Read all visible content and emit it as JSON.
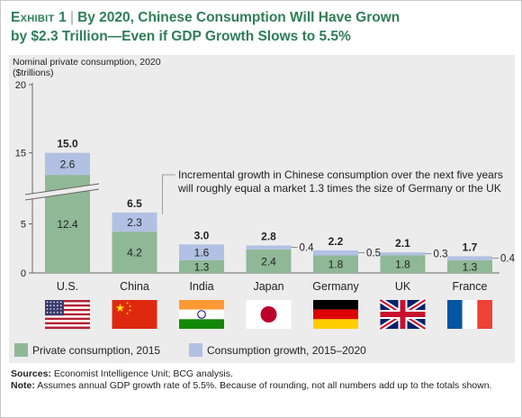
{
  "exhibit_label": "Exhibit 1",
  "title_line1": "By 2020, Chinese Consumption Will Have Grown",
  "title_line2": "by $2.3 Trillion—Even if GDP Growth Slows to 5.5%",
  "colors": {
    "base": "#8fb896",
    "growth": "#b2c1e3",
    "title": "#2f7d58",
    "panel": "#ececec"
  },
  "chart_data": {
    "type": "bar",
    "stacked": true,
    "ylabel_line1": "Nominal private consumption, 2020",
    "ylabel_line2": "($trillions)",
    "yticks": [
      "0",
      "5",
      "15",
      "20"
    ],
    "axis_break": true,
    "categories": [
      "U.S.",
      "China",
      "India",
      "Japan",
      "Germany",
      "UK",
      "France"
    ],
    "series": [
      {
        "name": "Private consumption, 2015",
        "values": [
          12.4,
          4.2,
          1.3,
          2.4,
          1.8,
          1.8,
          1.3
        ],
        "labels": [
          "12.4",
          "4.2",
          "1.3",
          "2.4",
          "1.8",
          "1.8",
          "1.3"
        ]
      },
      {
        "name": "Consumption growth, 2015–2020",
        "values": [
          2.6,
          2.3,
          1.6,
          0.4,
          0.5,
          0.3,
          0.4
        ],
        "labels": [
          "2.6",
          "2.3",
          "1.6",
          "0.4",
          "0.5",
          "0.3",
          "0.4"
        ]
      }
    ],
    "totals": [
      "15.0",
      "6.5",
      "3.0",
      "2.8",
      "2.2",
      "2.1",
      "1.7"
    ],
    "annotation_line1": "Incremental growth in Chinese consumption over the next five years",
    "annotation_line2": "will roughly equal a market 1.3 times the size of Germany or the UK",
    "flags": [
      "us-flag-icon",
      "china-flag-icon",
      "india-flag-icon",
      "japan-flag-icon",
      "germany-flag-icon",
      "uk-flag-icon",
      "france-flag-icon"
    ],
    "legend_placement": "bottom"
  },
  "footer": {
    "sources_label": "Sources:",
    "sources_text": "Economist Intelligence Unit; BCG analysis.",
    "note_label": "Note:",
    "note_text": "Assumes annual GDP growth rate of 5.5%. Because of rounding, not all numbers add up to the totals shown."
  }
}
